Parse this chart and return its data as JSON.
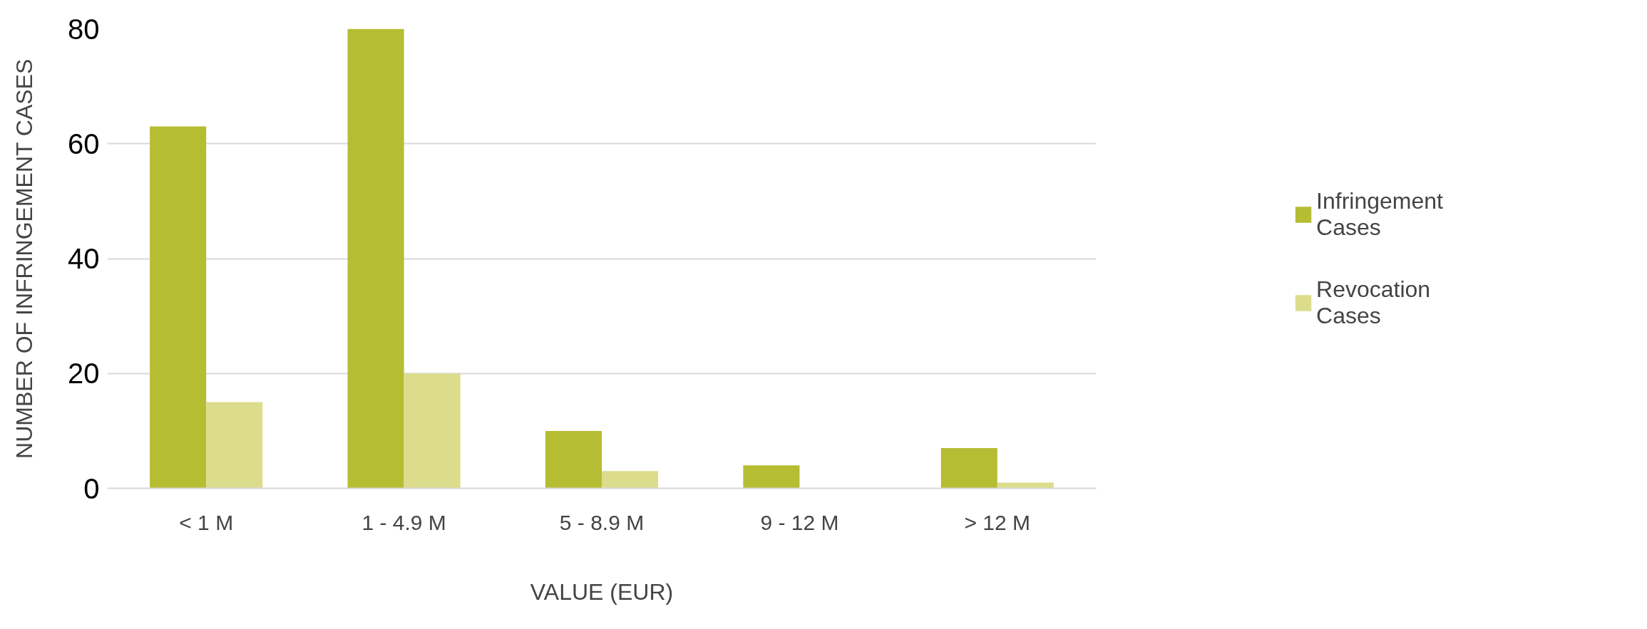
{
  "chart_data": {
    "type": "bar",
    "xlabel": "VALUE (EUR)",
    "ylabel": "NUMBER OF INFRINGEMENT CASES",
    "categories": [
      "< 1 M",
      "1 - 4.9 M",
      "5 - 8.9 M",
      "9 - 12 M",
      "> 12 M"
    ],
    "series": [
      {
        "name": "Infringement Cases",
        "color": "#b5bd33",
        "values": [
          63,
          80,
          10,
          4,
          7
        ]
      },
      {
        "name": "Revocation Cases",
        "color": "#dbdd8c",
        "values": [
          15,
          20,
          3,
          0,
          1
        ]
      }
    ],
    "ylim": [
      0,
      80
    ],
    "yticks": [
      0,
      20,
      40,
      60,
      80
    ],
    "grid": "y",
    "legend": "right"
  }
}
